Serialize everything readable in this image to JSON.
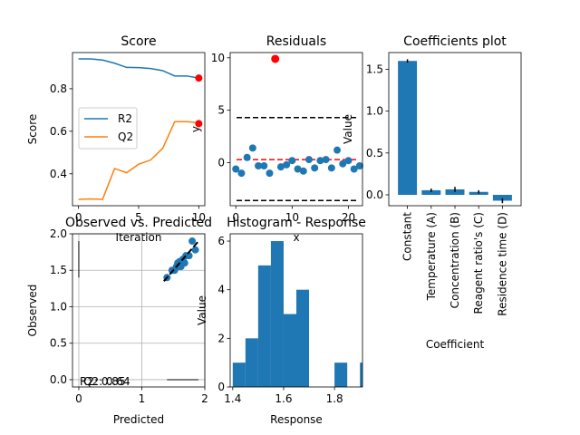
{
  "chart_data": [
    {
      "type": "line",
      "title": "Score",
      "xlabel": "Iteration",
      "ylabel": "Score",
      "xlim": [
        -0.5,
        10.5
      ],
      "ylim": [
        0.25,
        0.97
      ],
      "xticks": [
        0,
        5,
        10
      ],
      "yticks": [
        0.4,
        0.6,
        0.8
      ],
      "legend": {
        "placement": "center-left"
      },
      "series": [
        {
          "name": "R2",
          "color": "#1f77b4",
          "x": [
            0,
            1,
            2,
            3,
            4,
            5,
            6,
            7,
            8,
            9,
            10
          ],
          "y": [
            0.94,
            0.94,
            0.935,
            0.92,
            0.9,
            0.899,
            0.895,
            0.885,
            0.86,
            0.86,
            0.85
          ]
        },
        {
          "name": "Q2",
          "color": "#ff7f0e",
          "x": [
            0,
            1,
            2,
            3,
            4,
            5,
            6,
            7,
            8,
            9,
            10
          ],
          "y": [
            0.28,
            0.282,
            0.28,
            0.425,
            0.405,
            0.445,
            0.465,
            0.52,
            0.645,
            0.645,
            0.64
          ]
        }
      ],
      "highlight_points": [
        {
          "x": 10,
          "y": 0.85,
          "color": "#ff0000"
        },
        {
          "x": 10,
          "y": 0.636,
          "color": "#ff0000"
        }
      ]
    },
    {
      "type": "scatter",
      "title": "Residuals",
      "xlabel": "x",
      "ylabel": "y",
      "xlim": [
        -1,
        22.5
      ],
      "ylim": [
        -4.1,
        10.5
      ],
      "xticks": [
        0,
        10,
        20
      ],
      "yticks": [
        0,
        5,
        10
      ],
      "color": "#1f77b4",
      "points": [
        {
          "x": 0,
          "y": -0.6
        },
        {
          "x": 1,
          "y": -1.0
        },
        {
          "x": 2,
          "y": 0.5
        },
        {
          "x": 3,
          "y": 1.4
        },
        {
          "x": 4,
          "y": -0.3
        },
        {
          "x": 5,
          "y": -0.3
        },
        {
          "x": 6,
          "y": -1.0
        },
        {
          "x": 7,
          "y": 9.9
        },
        {
          "x": 8,
          "y": -0.4
        },
        {
          "x": 9,
          "y": -0.2
        },
        {
          "x": 10,
          "y": 0.2
        },
        {
          "x": 11,
          "y": -0.6
        },
        {
          "x": 12,
          "y": -0.8
        },
        {
          "x": 13,
          "y": 0.3
        },
        {
          "x": 14,
          "y": -0.5
        },
        {
          "x": 15,
          "y": 0.2
        },
        {
          "x": 16,
          "y": 0.3
        },
        {
          "x": 17,
          "y": -0.5
        },
        {
          "x": 18,
          "y": 1.2
        },
        {
          "x": 19,
          "y": -0.1
        },
        {
          "x": 20,
          "y": 0.2
        },
        {
          "x": 21,
          "y": -0.6
        },
        {
          "x": 22,
          "y": -0.3
        }
      ],
      "highlight_points": [
        {
          "x": 7,
          "y": 9.9,
          "color": "#ff0000"
        }
      ],
      "hlines": [
        {
          "y": 4.3,
          "color": "#000000",
          "style": "dashed"
        },
        {
          "y": -3.6,
          "color": "#000000",
          "style": "dashed"
        },
        {
          "y": 0.3,
          "color": "#ff0000",
          "style": "dashed"
        }
      ]
    },
    {
      "type": "bar",
      "title": "Coefficients plot",
      "xlabel": "Coefficient",
      "ylabel": "Value",
      "ylim": [
        -0.13,
        1.7
      ],
      "yticks": [
        0.0,
        0.5,
        1.0,
        1.5
      ],
      "color": "#1f77b4",
      "categories": [
        "Constant",
        "Temperature (A)",
        "Concentration (B)",
        "Reagent ratio's (C)",
        "Residence time (D)"
      ],
      "values": [
        1.6,
        0.055,
        0.065,
        0.035,
        -0.07
      ],
      "errors": [
        0.02,
        0.02,
        0.03,
        0.02,
        0.03
      ]
    },
    {
      "type": "scatter",
      "title": "Observed vs. Predicted",
      "xlabel": "Predicted",
      "ylabel": "Observed",
      "xlim": [
        -0.1,
        2.0
      ],
      "ylim": [
        -0.1,
        2.0
      ],
      "xticks": [
        0,
        1,
        2
      ],
      "yticks": [
        0.0,
        0.5,
        1.0,
        1.5,
        2.0
      ],
      "grid": true,
      "color": "#1f77b4",
      "points": [
        {
          "x": 1.4,
          "y": 1.4
        },
        {
          "x": 1.48,
          "y": 1.5
        },
        {
          "x": 1.52,
          "y": 1.5
        },
        {
          "x": 1.55,
          "y": 1.55
        },
        {
          "x": 1.57,
          "y": 1.6
        },
        {
          "x": 1.6,
          "y": 1.62
        },
        {
          "x": 1.62,
          "y": 1.55
        },
        {
          "x": 1.65,
          "y": 1.65
        },
        {
          "x": 1.68,
          "y": 1.6
        },
        {
          "x": 1.7,
          "y": 1.7
        },
        {
          "x": 1.75,
          "y": 1.7
        },
        {
          "x": 1.8,
          "y": 1.9
        },
        {
          "x": 1.85,
          "y": 1.78
        },
        {
          "x": 1.58,
          "y": 1.55
        }
      ],
      "diagonal": {
        "from": 1.35,
        "to": 1.9,
        "color": "#000000",
        "style": "dashed"
      },
      "extra_lines": [
        {
          "x1": 0.0,
          "y1": 1.4,
          "x2": 0.0,
          "y2": 1.9,
          "color": "#000000"
        },
        {
          "x1": 1.4,
          "y1": 0.0,
          "x2": 1.9,
          "y2": 0.0,
          "color": "#000000"
        }
      ],
      "annotations": [
        "R2: 0.85",
        "Q2: 0.64"
      ]
    },
    {
      "type": "bar",
      "title": "Histogram - Response",
      "xlabel": "Response",
      "ylabel": "Value",
      "xlim": [
        1.39,
        1.91
      ],
      "ylim": [
        0,
        6.3
      ],
      "xticks": [
        1.4,
        1.6,
        1.8
      ],
      "yticks": [
        0,
        2,
        4,
        6
      ],
      "color": "#1f77b4",
      "bins": [
        {
          "start": 1.4,
          "end": 1.45,
          "count": 1
        },
        {
          "start": 1.45,
          "end": 1.5,
          "count": 2
        },
        {
          "start": 1.5,
          "end": 1.55,
          "count": 5
        },
        {
          "start": 1.55,
          "end": 1.6,
          "count": 6
        },
        {
          "start": 1.6,
          "end": 1.65,
          "count": 3
        },
        {
          "start": 1.65,
          "end": 1.7,
          "count": 4
        },
        {
          "start": 1.7,
          "end": 1.75,
          "count": 0
        },
        {
          "start": 1.75,
          "end": 1.8,
          "count": 0
        },
        {
          "start": 1.8,
          "end": 1.85,
          "count": 1
        },
        {
          "start": 1.85,
          "end": 1.9,
          "count": 0
        },
        {
          "start": 1.9,
          "end": 1.95,
          "count": 1
        }
      ]
    }
  ]
}
